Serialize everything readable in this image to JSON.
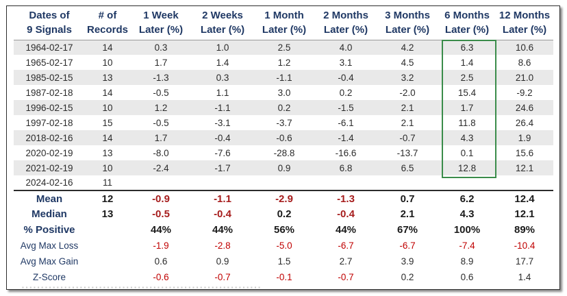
{
  "headers": [
    [
      "Dates of",
      "9 Signals"
    ],
    [
      "# of",
      "Records"
    ],
    [
      "1 Week",
      "Later (%)"
    ],
    [
      "2 Weeks",
      "Later (%)"
    ],
    [
      "1 Month",
      "Later (%)"
    ],
    [
      "2 Months",
      "Later (%)"
    ],
    [
      "3 Months",
      "Later (%)"
    ],
    [
      "6 Months",
      "Later (%)"
    ],
    [
      "12 Months",
      "Later (%)"
    ]
  ],
  "rows": [
    [
      "1964-02-17",
      "14",
      "0.3",
      "1.0",
      "2.5",
      "4.0",
      "4.2",
      "6.3",
      "10.6"
    ],
    [
      "1965-02-17",
      "10",
      "1.7",
      "1.4",
      "1.2",
      "3.1",
      "4.5",
      "1.4",
      "8.6"
    ],
    [
      "1985-02-15",
      "13",
      "-1.3",
      "0.3",
      "-1.1",
      "-0.4",
      "3.2",
      "2.5",
      "21.0"
    ],
    [
      "1987-02-18",
      "14",
      "-0.5",
      "1.1",
      "3.0",
      "0.2",
      "-2.0",
      "15.4",
      "-9.2"
    ],
    [
      "1996-02-15",
      "10",
      "1.2",
      "-1.1",
      "0.2",
      "-1.5",
      "2.1",
      "1.7",
      "24.6"
    ],
    [
      "1997-02-18",
      "15",
      "-0.5",
      "-3.1",
      "-3.7",
      "-6.1",
      "2.1",
      "11.8",
      "26.4"
    ],
    [
      "2018-02-16",
      "14",
      "1.7",
      "-0.4",
      "-0.6",
      "-1.4",
      "-0.7",
      "4.3",
      "1.9"
    ],
    [
      "2020-02-19",
      "13",
      "-8.0",
      "-7.6",
      "-28.8",
      "-16.6",
      "-13.7",
      "0.1",
      "15.6"
    ],
    [
      "2021-02-19",
      "10",
      "-2.4",
      "-1.7",
      "0.9",
      "6.8",
      "6.5",
      "12.8",
      "12.1"
    ],
    [
      "2024-02-16",
      "11",
      "",
      "",
      "",
      "",
      "",
      "",
      ""
    ]
  ],
  "stats": [
    [
      "Mean",
      "12",
      "-0.9",
      "-1.1",
      "-2.9",
      "-1.3",
      "0.7",
      "6.2",
      "12.4"
    ],
    [
      "Median",
      "13",
      "-0.5",
      "-0.4",
      "0.2",
      "-0.4",
      "2.1",
      "4.3",
      "12.1"
    ],
    [
      "% Positive",
      "",
      "44%",
      "44%",
      "56%",
      "44%",
      "67%",
      "100%",
      "89%"
    ],
    [
      "Avg Max Loss",
      "",
      "-1.9",
      "-2.8",
      "-5.0",
      "-6.7",
      "-6.7",
      "-7.4",
      "-10.4"
    ],
    [
      "Avg Max Gain",
      "",
      "0.6",
      "0.9",
      "1.5",
      "2.7",
      "3.9",
      "8.9",
      "17.7"
    ],
    [
      "Z-Score",
      "",
      "-0.6",
      "-0.7",
      "-0.1",
      "-0.7",
      "0.2",
      "0.6",
      "1.4"
    ]
  ],
  "colors": {
    "header_text": "#1f3864",
    "negative": "#c00000",
    "highlight_box": "#3a8c4a",
    "row_shade": "#e9e9e9"
  }
}
